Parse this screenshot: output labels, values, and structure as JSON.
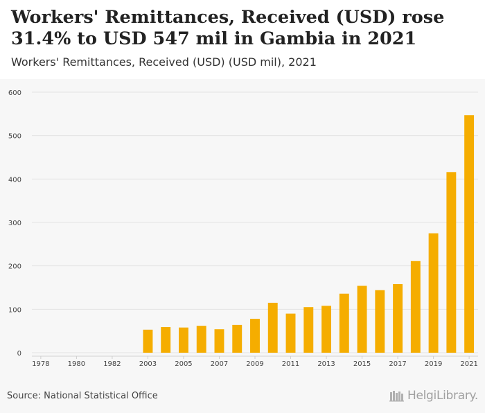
{
  "header": {
    "title": "Workers' Remittances, Received (USD) rose 31.4% to USD 547 mil in Gambia in 2021",
    "subtitle": "Workers' Remittances, Received (USD) (USD mil), 2021"
  },
  "footer": {
    "source": "Source: National Statistical Office",
    "brand_name": "HelgiLibrary."
  },
  "colors": {
    "bar": "#f5ad00",
    "grid": "#e3e3e3",
    "tick_text": "#444444"
  },
  "chart_data": {
    "type": "bar",
    "categories": [
      "1978",
      "1979",
      "1980",
      "1981",
      "1982",
      "1983",
      "2003",
      "2004",
      "2005",
      "2006",
      "2007",
      "2008",
      "2009",
      "2010",
      "2011",
      "2012",
      "2013",
      "2014",
      "2015",
      "2016",
      "2017",
      "2018",
      "2019",
      "2020",
      "2021"
    ],
    "x_tick_labels": [
      "1978",
      "1980",
      "1982",
      "2003",
      "2005",
      "2007",
      "2009",
      "2011",
      "2013",
      "2015",
      "2017",
      "2019",
      "2021"
    ],
    "values": [
      null,
      null,
      null,
      null,
      null,
      null,
      53,
      59,
      58,
      62,
      54,
      64,
      78,
      115,
      90,
      105,
      108,
      136,
      154,
      144,
      158,
      211,
      275,
      416,
      547
    ],
    "ylim": [
      0,
      600
    ],
    "yticks": [
      0,
      100,
      200,
      300,
      400,
      500,
      600
    ],
    "xlabel": "",
    "ylabel": "",
    "grid": true
  }
}
